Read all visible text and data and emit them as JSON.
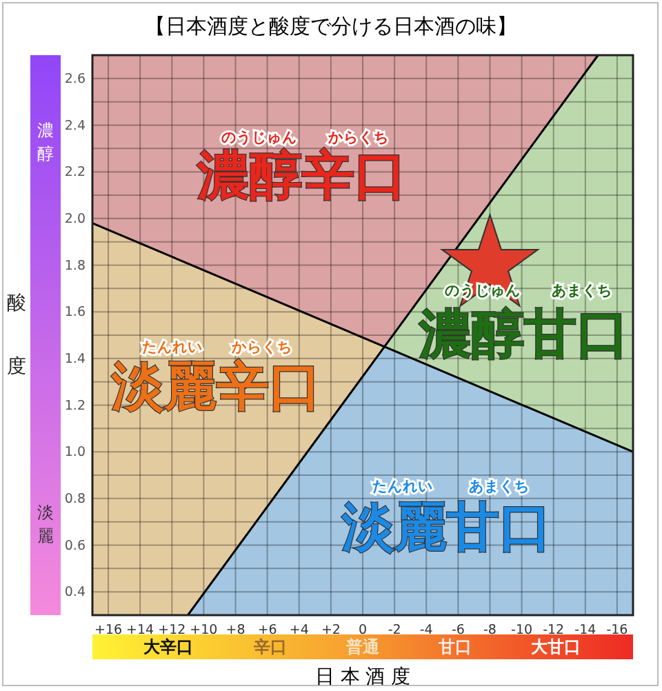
{
  "chart_data": {
    "type": "line",
    "title": "【日本酒度と酸度で分ける日本酒の味】",
    "xlabel": "日 本 酒 度",
    "ylabel": "酸度",
    "xlim": [
      17,
      -17
    ],
    "ylim": [
      0.3,
      2.7
    ],
    "xticks": [
      {
        "value": 16,
        "label": "+16"
      },
      {
        "value": 14,
        "label": "+14"
      },
      {
        "value": 12,
        "label": "+12"
      },
      {
        "value": 10,
        "label": "+10"
      },
      {
        "value": 8,
        "label": "+8"
      },
      {
        "value": 6,
        "label": "+6"
      },
      {
        "value": 4,
        "label": "+4"
      },
      {
        "value": 2,
        "label": "+2"
      },
      0,
      -2,
      -4,
      -6,
      -8,
      -10,
      -12,
      -14,
      -16
    ],
    "yticks": [
      {
        "value": 0.4,
        "label": "0.4"
      },
      {
        "value": 0.5,
        "label": null
      },
      {
        "value": 0.6,
        "label": "0.6"
      },
      {
        "value": 0.7,
        "label": null
      },
      {
        "value": 0.8,
        "label": "0.8"
      },
      {
        "value": 0.9,
        "label": null
      },
      {
        "value": 1.0,
        "label": "1.0"
      },
      {
        "value": 1.1,
        "label": null
      },
      {
        "value": 1.2,
        "label": "1.2"
      },
      {
        "value": 1.3,
        "label": null
      },
      {
        "value": 1.4,
        "label": "1.4"
      },
      {
        "value": 1.5,
        "label": null
      },
      {
        "value": 1.6,
        "label": "1.6"
      },
      {
        "value": 1.7,
        "label": null
      },
      {
        "value": 1.8,
        "label": "1.8"
      },
      {
        "value": 1.9,
        "label": null
      },
      {
        "value": 2.0,
        "label": "2.0"
      },
      {
        "value": 2.1,
        "label": null
      },
      {
        "value": 2.2,
        "label": "2.2"
      },
      {
        "value": 2.3,
        "label": null
      },
      {
        "value": 2.4,
        "label": "2.4"
      },
      {
        "value": 2.5,
        "label": null
      },
      {
        "value": 2.6,
        "label": "2.6"
      }
    ],
    "grid": true,
    "series": [
      {
        "color": "#000000",
        "x": [
          17,
          -17
        ],
        "values": [
          1.98,
          1.0
        ]
      },
      {
        "color": "#000000",
        "x": [
          11,
          -14.8
        ],
        "values": [
          0.3,
          2.7
        ]
      },
      {
        "type": "scatter",
        "marker": "star",
        "color": "#e03c2c",
        "x": [
          -8
        ],
        "values": [
          1.8
        ]
      }
    ],
    "annotations": [
      "濃醇辛口",
      "のうじゅん",
      "からくち",
      "淡麗辛口",
      "たんれい",
      "からくち",
      "濃醇甘口",
      "のうじゅん",
      "あまくち",
      "淡麗甘口",
      "たんれい",
      "あまくち",
      "大辛口",
      "辛口",
      "普通",
      "甘口",
      "大甘口",
      "濃醇",
      "淡麗"
    ]
  }
}
